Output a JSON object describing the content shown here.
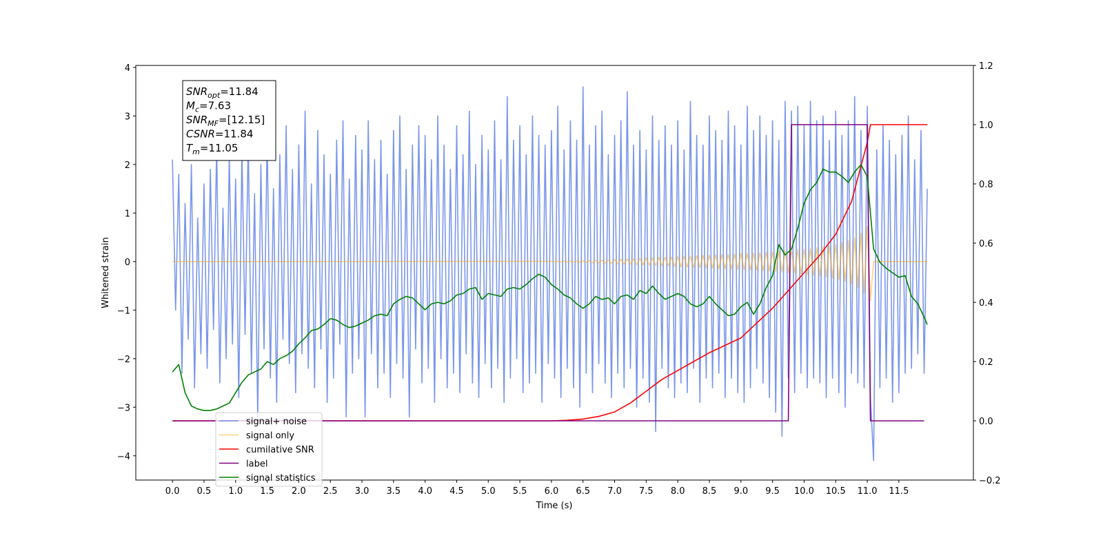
{
  "chart_data": {
    "type": "line",
    "xlabel": "Time (s)",
    "ylabel": "Whitened strain",
    "xlim": [
      -0.58,
      12.68
    ],
    "ylim": [
      -4.5,
      4.04
    ],
    "y2lim": [
      -0.2,
      1.2
    ],
    "xticks": [
      {
        "value": 0,
        "label": "0.0"
      },
      0.5,
      {
        "value": 1,
        "label": "1.0"
      },
      1.5,
      {
        "value": 2,
        "label": "2.0"
      },
      2.5,
      {
        "value": 3,
        "label": "3.0"
      },
      3.5,
      {
        "value": 4,
        "label": "4.0"
      },
      4.5,
      {
        "value": 5,
        "label": "5.0"
      },
      5.5,
      {
        "value": 6,
        "label": "6.0"
      },
      6.5,
      {
        "value": 7,
        "label": "7.0"
      },
      7.5,
      {
        "value": 8,
        "label": "8.0"
      },
      8.5,
      {
        "value": 9,
        "label": "9.0"
      },
      9.5,
      {
        "value": 10,
        "label": "10.0"
      },
      10.5,
      {
        "value": 11,
        "label": "11.0"
      },
      11.5
    ],
    "yticks": [
      {
        "value": -4,
        "label": "−4"
      },
      {
        "value": -3,
        "label": "−3"
      },
      {
        "value": -2,
        "label": "−2"
      },
      {
        "value": -1,
        "label": "−1"
      },
      0,
      1,
      2,
      3,
      4
    ],
    "y2ticks": [
      {
        "value": -0.2,
        "label": "−0.2"
      },
      {
        "value": 0,
        "label": "0.0"
      },
      0.2,
      0.4,
      0.6,
      0.8,
      {
        "value": 1,
        "label": "1.0"
      },
      1.2
    ],
    "legend_loc": "lower left",
    "annotation": [
      {
        "symbol": "SNR",
        "sub": "opt",
        "text": "=11.84"
      },
      {
        "symbol": "M",
        "sub": "c",
        "text": "=7.63"
      },
      {
        "symbol": "SNR",
        "sub": "MF",
        "text": "=[12.15]"
      },
      {
        "symbol": "CSNR",
        "sub": null,
        "text": "=11.84"
      },
      {
        "symbol": "T",
        "sub": "m",
        "text": "=11.05"
      }
    ],
    "x": [
      0,
      0.05,
      0.1,
      0.15,
      0.2,
      0.25,
      0.3,
      0.35,
      0.4,
      0.45,
      0.5,
      0.55,
      0.6,
      0.65,
      0.7,
      0.75,
      0.8,
      0.85,
      0.9,
      0.95,
      1,
      1.05,
      1.1,
      1.15,
      1.2,
      1.25,
      1.3,
      1.35,
      1.4,
      1.45,
      1.5,
      1.55,
      1.6,
      1.65,
      1.7,
      1.75,
      1.8,
      1.85,
      1.9,
      1.95,
      2,
      2.05,
      2.1,
      2.15,
      2.2,
      2.25,
      2.3,
      2.35,
      2.4,
      2.45,
      2.5,
      2.55,
      2.6,
      2.65,
      2.7,
      2.75,
      2.8,
      2.85,
      2.9,
      2.95,
      3,
      3.05,
      3.1,
      3.15,
      3.2,
      3.25,
      3.3,
      3.35,
      3.4,
      3.45,
      3.5,
      3.55,
      3.6,
      3.65,
      3.7,
      3.75,
      3.8,
      3.85,
      3.9,
      3.95,
      4,
      4.05,
      4.1,
      4.15,
      4.2,
      4.25,
      4.3,
      4.35,
      4.4,
      4.45,
      4.5,
      4.55,
      4.6,
      4.65,
      4.7,
      4.75,
      4.8,
      4.85,
      4.9,
      4.95,
      5,
      5.05,
      5.1,
      5.15,
      5.2,
      5.25,
      5.3,
      5.35,
      5.4,
      5.45,
      5.5,
      5.55,
      5.6,
      5.65,
      5.7,
      5.75,
      5.8,
      5.85,
      5.9,
      5.95,
      6,
      6.05,
      6.1,
      6.15,
      6.2,
      6.25,
      6.3,
      6.35,
      6.4,
      6.45,
      6.5,
      6.55,
      6.6,
      6.65,
      6.7,
      6.75,
      6.8,
      6.85,
      6.9,
      6.95,
      7,
      7.05,
      7.1,
      7.15,
      7.2,
      7.25,
      7.3,
      7.35,
      7.4,
      7.45,
      7.5,
      7.55,
      7.6,
      7.65,
      7.7,
      7.75,
      7.8,
      7.85,
      7.9,
      7.95,
      8,
      8.05,
      8.1,
      8.15,
      8.2,
      8.25,
      8.3,
      8.35,
      8.4,
      8.45,
      8.5,
      8.55,
      8.6,
      8.65,
      8.7,
      8.75,
      8.8,
      8.85,
      8.9,
      8.95,
      9,
      9.05,
      9.1,
      9.15,
      9.2,
      9.25,
      9.3,
      9.35,
      9.4,
      9.45,
      9.5,
      9.55,
      9.6,
      9.65,
      9.7,
      9.75,
      9.8,
      9.85,
      9.9,
      9.95,
      10,
      10.05,
      10.1,
      10.15,
      10.2,
      10.25,
      10.3,
      10.35,
      10.4,
      10.45,
      10.5,
      10.55,
      10.6,
      10.65,
      10.7,
      10.75,
      10.8,
      10.85,
      10.9,
      10.95,
      11,
      11.05,
      11.1,
      11.15,
      11.2,
      11.25,
      11.3,
      11.35,
      11.4,
      11.45,
      11.5,
      11.55,
      11.6,
      11.65,
      11.7,
      11.75,
      11.8,
      11.85,
      11.9,
      11.95
    ],
    "series": [
      {
        "name": "signal+ noise",
        "color": "#4169e1",
        "alpha": 0.7,
        "values": [
          2.1,
          -1.0,
          1.8,
          -2.3,
          1.2,
          -1.6,
          2.0,
          -2.6,
          0.9,
          -1.9,
          1.6,
          -2.2,
          1.9,
          -1.4,
          2.4,
          -2.5,
          1.1,
          -2.0,
          2.2,
          -1.7,
          1.7,
          -2.8,
          2.3,
          -1.5,
          2.5,
          -2.3,
          1.4,
          -3.2,
          2.0,
          -1.8,
          2.6,
          -2.4,
          1.5,
          -2.9,
          2.2,
          -1.6,
          2.8,
          -2.1,
          1.9,
          -2.7,
          2.4,
          -1.9,
          3.1,
          -2.2,
          1.6,
          -2.6,
          2.7,
          -1.8,
          2.2,
          -2.9,
          1.8,
          -2.4,
          2.5,
          -1.7,
          2.9,
          -3.2,
          1.7,
          -2.3,
          2.6,
          -2.0,
          2.3,
          -3.2,
          2.9,
          -1.9,
          2.1,
          -2.6,
          2.5,
          -2.3,
          1.8,
          -2.8,
          2.7,
          -2.1,
          3.0,
          -2.4,
          1.9,
          -3.2,
          2.4,
          -1.8,
          2.8,
          -2.5,
          2.6,
          -2.2,
          2.1,
          -2.9,
          3.0,
          -2.0,
          2.4,
          -2.6,
          1.9,
          -2.3,
          2.8,
          -2.7,
          2.2,
          -1.9,
          3.1,
          -2.5,
          2.0,
          -2.8,
          2.6,
          -2.1,
          2.3,
          -2.6,
          2.9,
          -2.2,
          2.1,
          -2.9,
          3.4,
          -2.4,
          2.5,
          -2.0,
          2.8,
          -2.7,
          2.2,
          -2.5,
          3.0,
          -2.3,
          2.6,
          -2.9,
          2.4,
          -2.1,
          2.7,
          -2.4,
          3.2,
          -2.8,
          2.3,
          -2.2,
          2.9,
          -2.6,
          2.5,
          -3.0,
          3.6,
          -2.3,
          2.4,
          -2.7,
          2.8,
          -2.1,
          3.1,
          -2.5,
          2.2,
          -2.8,
          2.6,
          -2.3,
          2.9,
          -2.6,
          3.5,
          -2.2,
          2.4,
          -3.0,
          2.7,
          -2.4,
          2.3,
          -2.9,
          3.0,
          -3.5,
          2.5,
          -2.2,
          2.8,
          -2.6,
          2.4,
          -2.8,
          2.9,
          -2.5,
          2.3,
          -2.7,
          3.3,
          -2.2,
          2.6,
          -2.9,
          2.4,
          -2.4,
          3.0,
          -2.6,
          2.7,
          -2.3,
          2.5,
          -2.8,
          3.1,
          -2.4,
          2.8,
          -2.7,
          2.4,
          -2.9,
          3.2,
          -2.6,
          2.7,
          -2.2,
          3.0,
          -2.5,
          2.6,
          -2.8,
          2.9,
          -3.1,
          2.5,
          -3.6,
          3.3,
          -2.4,
          3.1,
          -2.7,
          3.2,
          -2.3,
          2.8,
          -2.6,
          3.3,
          -2.4,
          2.9,
          -2.5,
          3.0,
          -2.8,
          2.5,
          -2.4,
          3.1,
          -2.7,
          2.6,
          -3.0,
          2.9,
          -2.3,
          3.4,
          -2.5,
          2.7,
          -2.6,
          3.2,
          -2.8,
          -4.1,
          2.3,
          -2.6,
          2.8,
          -2.4,
          2.5,
          -2.9,
          2.2,
          -2.7,
          2.6,
          -2.3,
          3.0,
          -2.2,
          2.1,
          -1.9,
          2.7,
          -2.3,
          1.5
        ]
      },
      {
        "name": "signal only",
        "color": "#ffa500",
        "alpha": 0.5,
        "x": [
          0,
          6,
          6.05,
          6.1,
          6.15,
          6.2,
          6.25,
          6.3,
          6.35,
          6.4,
          6.45,
          6.5,
          6.55,
          6.6,
          6.65,
          6.7,
          6.75,
          6.8,
          6.85,
          6.9,
          6.95,
          7,
          7.05,
          7.1,
          7.15,
          7.2,
          7.25,
          7.3,
          7.35,
          7.4,
          7.45,
          7.5,
          7.55,
          7.6,
          7.65,
          7.7,
          7.75,
          7.8,
          7.85,
          7.9,
          7.95,
          8,
          8.05,
          8.1,
          8.15,
          8.2,
          8.25,
          8.3,
          8.35,
          8.4,
          8.45,
          8.5,
          8.55,
          8.6,
          8.65,
          8.7,
          8.75,
          8.8,
          8.85,
          8.9,
          8.95,
          9,
          9.05,
          9.1,
          9.15,
          9.2,
          9.25,
          9.3,
          9.35,
          9.4,
          9.45,
          9.5,
          9.55,
          9.6,
          9.65,
          9.7,
          9.75,
          9.8,
          9.85,
          9.9,
          9.95,
          10,
          10.05,
          10.1,
          10.15,
          10.2,
          10.25,
          10.3,
          10.35,
          10.4,
          10.45,
          10.5,
          10.55,
          10.6,
          10.65,
          10.7,
          10.75,
          10.8,
          10.85,
          10.9,
          10.95,
          11,
          11.05,
          11.1,
          11.95
        ],
        "values": [
          0,
          0.005,
          -0.006,
          0.007,
          -0.008,
          0.009,
          -0.01,
          0.011,
          -0.012,
          0.014,
          -0.016,
          0.018,
          -0.02,
          0.022,
          -0.024,
          0.026,
          -0.028,
          0.03,
          -0.033,
          0.036,
          -0.039,
          0.042,
          -0.045,
          0.048,
          -0.051,
          0.054,
          -0.057,
          0.06,
          -0.063,
          0.066,
          -0.069,
          0.072,
          -0.075,
          0.078,
          -0.081,
          0.084,
          -0.087,
          0.09,
          -0.093,
          0.096,
          -0.1,
          0.103,
          -0.106,
          0.109,
          -0.112,
          0.115,
          -0.118,
          0.121,
          -0.124,
          0.127,
          -0.13,
          0.133,
          -0.136,
          0.139,
          -0.142,
          0.145,
          -0.148,
          0.151,
          -0.154,
          0.157,
          -0.16,
          0.163,
          -0.166,
          0.169,
          -0.172,
          0.176,
          -0.18,
          0.184,
          -0.188,
          0.192,
          -0.196,
          0.2,
          -0.205,
          0.21,
          -0.215,
          0.22,
          -0.225,
          0.23,
          -0.236,
          0.242,
          -0.248,
          0.255,
          -0.262,
          0.27,
          -0.278,
          0.287,
          -0.296,
          0.306,
          -0.317,
          0.329,
          -0.342,
          0.356,
          -0.372,
          0.39,
          -0.41,
          0.433,
          -0.46,
          0.49,
          -0.53,
          0.58,
          -0.64,
          0.72,
          -0.8,
          0,
          0
        ]
      },
      {
        "name": "cumilative SNR",
        "color": "#ff0000",
        "alpha": 1,
        "axis": "y2",
        "x": [
          0,
          6,
          6.25,
          6.5,
          6.75,
          7,
          7.25,
          7.5,
          7.75,
          8,
          8.25,
          8.5,
          8.75,
          9,
          9.25,
          9.5,
          9.75,
          10,
          10.25,
          10.5,
          10.75,
          11,
          11.05,
          11.95
        ],
        "values": [
          0,
          0,
          0.002,
          0.006,
          0.015,
          0.03,
          0.06,
          0.1,
          0.14,
          0.17,
          0.2,
          0.23,
          0.255,
          0.28,
          0.33,
          0.38,
          0.44,
          0.5,
          0.56,
          0.63,
          0.74,
          0.94,
          1,
          1
        ]
      },
      {
        "name": "label",
        "color": "#800080",
        "alpha": 1,
        "axis": "y2",
        "x": [
          0,
          9.75,
          9.8,
          11,
          11.05,
          11.9
        ],
        "values": [
          0,
          0,
          1,
          1,
          0,
          0
        ]
      },
      {
        "name": "signal statistics",
        "color": "#008000",
        "alpha": 1,
        "axis": "y2",
        "x": [
          0,
          0.1,
          0.2,
          0.3,
          0.4,
          0.5,
          0.6,
          0.7,
          0.8,
          0.9,
          1,
          1.1,
          1.2,
          1.3,
          1.4,
          1.5,
          1.6,
          1.7,
          1.8,
          1.9,
          2,
          2.1,
          2.2,
          2.3,
          2.4,
          2.5,
          2.6,
          2.7,
          2.8,
          2.9,
          3,
          3.1,
          3.2,
          3.3,
          3.4,
          3.5,
          3.6,
          3.7,
          3.8,
          3.9,
          4,
          4.1,
          4.2,
          4.3,
          4.4,
          4.5,
          4.6,
          4.7,
          4.8,
          4.9,
          5,
          5.1,
          5.2,
          5.3,
          5.4,
          5.5,
          5.6,
          5.7,
          5.8,
          5.9,
          6,
          6.1,
          6.2,
          6.3,
          6.4,
          6.5,
          6.6,
          6.7,
          6.8,
          6.9,
          7,
          7.1,
          7.2,
          7.3,
          7.4,
          7.5,
          7.6,
          7.7,
          7.8,
          7.9,
          8,
          8.1,
          8.2,
          8.3,
          8.4,
          8.5,
          8.6,
          8.7,
          8.8,
          8.9,
          9,
          9.1,
          9.2,
          9.3,
          9.4,
          9.5,
          9.6,
          9.7,
          9.8,
          9.9,
          10,
          10.1,
          10.2,
          10.3,
          10.4,
          10.5,
          10.6,
          10.7,
          10.8,
          10.9,
          11,
          11.1,
          11.2,
          11.3,
          11.4,
          11.5,
          11.6,
          11.7,
          11.8,
          11.9,
          11.95
        ],
        "values": [
          0.165,
          0.19,
          0.095,
          0.05,
          0.04,
          0.035,
          0.035,
          0.04,
          0.05,
          0.06,
          0.095,
          0.13,
          0.155,
          0.165,
          0.175,
          0.2,
          0.19,
          0.21,
          0.22,
          0.235,
          0.26,
          0.28,
          0.305,
          0.31,
          0.325,
          0.345,
          0.34,
          0.325,
          0.315,
          0.32,
          0.33,
          0.34,
          0.355,
          0.36,
          0.355,
          0.395,
          0.41,
          0.42,
          0.415,
          0.395,
          0.375,
          0.395,
          0.4,
          0.395,
          0.405,
          0.425,
          0.43,
          0.445,
          0.45,
          0.41,
          0.43,
          0.425,
          0.42,
          0.445,
          0.45,
          0.445,
          0.46,
          0.48,
          0.495,
          0.485,
          0.46,
          0.445,
          0.425,
          0.415,
          0.395,
          0.38,
          0.395,
          0.42,
          0.41,
          0.415,
          0.395,
          0.42,
          0.425,
          0.41,
          0.44,
          0.43,
          0.455,
          0.43,
          0.41,
          0.42,
          0.43,
          0.42,
          0.395,
          0.385,
          0.395,
          0.42,
          0.395,
          0.375,
          0.355,
          0.36,
          0.385,
          0.4,
          0.36,
          0.395,
          0.45,
          0.49,
          0.595,
          0.56,
          0.58,
          0.65,
          0.735,
          0.78,
          0.805,
          0.85,
          0.84,
          0.84,
          0.825,
          0.805,
          0.84,
          0.865,
          0.825,
          0.58,
          0.535,
          0.515,
          0.5,
          0.485,
          0.49,
          0.42,
          0.395,
          0.35,
          0.325
        ]
      }
    ]
  }
}
